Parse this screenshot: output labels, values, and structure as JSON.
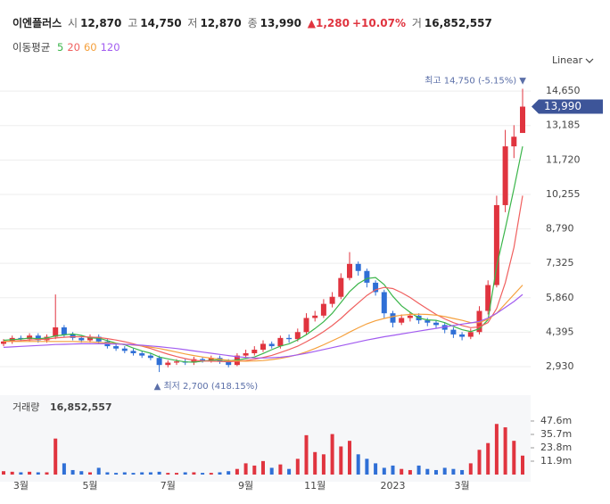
{
  "header": {
    "name": "이엔플러스",
    "open_label": "시",
    "open": "12,870",
    "high_label": "고",
    "high": "14,750",
    "low_label": "저",
    "low": "12,870",
    "close_label": "종",
    "close": "13,990",
    "change": "▲1,280",
    "change_pct": "+10.07%",
    "volume_label": "거",
    "volume": "16,852,557"
  },
  "chart_data": {
    "type": "candlestick",
    "scale_label": "Linear",
    "legend_title": "이동평균",
    "up_color": "#e0343f",
    "down_color": "#2f6fd6",
    "categories": [
      null,
      null,
      "3월",
      null,
      null,
      null,
      null,
      null,
      null,
      null,
      "5월",
      null,
      null,
      null,
      null,
      null,
      null,
      null,
      null,
      "7월",
      null,
      null,
      null,
      null,
      null,
      null,
      null,
      null,
      "9월",
      null,
      null,
      null,
      null,
      null,
      null,
      null,
      "11월",
      null,
      null,
      null,
      null,
      null,
      null,
      null,
      null,
      "2023",
      null,
      null,
      null,
      null,
      null,
      null,
      null,
      "3월",
      null,
      null,
      null,
      null,
      null,
      null,
      null
    ],
    "open": [
      3900,
      4000,
      4150,
      4100,
      4250,
      4050,
      4200,
      4600,
      4300,
      4150,
      4050,
      4200,
      4000,
      3800,
      3700,
      3600,
      3500,
      3400,
      3300,
      3000,
      3100,
      3150,
      3100,
      3250,
      3200,
      3300,
      3150,
      3000,
      3400,
      3500,
      3650,
      3900,
      3800,
      4150,
      4100,
      4400,
      5000,
      5100,
      5600,
      5900,
      6700,
      7300,
      7000,
      6500,
      6100,
      5200,
      4800,
      5000,
      5100,
      4900,
      4800,
      4700,
      4500,
      4300,
      4200,
      4400,
      5300,
      6400,
      9800,
      12300,
      12870
    ],
    "high": [
      4100,
      4250,
      4250,
      4350,
      4350,
      4300,
      6000,
      4700,
      4400,
      4250,
      4300,
      4300,
      4100,
      3900,
      3800,
      3700,
      3600,
      3500,
      3400,
      3200,
      3250,
      3250,
      3350,
      3350,
      3400,
      3400,
      3250,
      3500,
      3650,
      3800,
      4050,
      4000,
      4250,
      4300,
      4550,
      5200,
      5300,
      5800,
      6100,
      6900,
      7800,
      7400,
      7100,
      6600,
      6200,
      5300,
      5150,
      5250,
      5200,
      5000,
      4900,
      4800,
      4600,
      4400,
      4550,
      5500,
      6600,
      10200,
      13000,
      13200,
      14750
    ],
    "low": [
      3800,
      3900,
      4000,
      4000,
      3950,
      3950,
      4100,
      4200,
      4050,
      3950,
      3950,
      3900,
      3700,
      3600,
      3500,
      3400,
      3300,
      3200,
      2700,
      2900,
      3000,
      3000,
      3000,
      3100,
      3100,
      3050,
      2900,
      2950,
      3300,
      3400,
      3550,
      3700,
      3700,
      3950,
      4000,
      4300,
      4850,
      5000,
      5450,
      5800,
      6600,
      6800,
      6300,
      5950,
      5000,
      4600,
      4700,
      4850,
      4750,
      4650,
      4550,
      4350,
      4150,
      4050,
      4100,
      4300,
      5150,
      6300,
      9500,
      11800,
      12870
    ],
    "close": [
      4000,
      4150,
      4100,
      4250,
      4050,
      4200,
      4600,
      4300,
      4150,
      4050,
      4200,
      4000,
      3800,
      3700,
      3600,
      3500,
      3400,
      3300,
      3000,
      3100,
      3150,
      3100,
      3250,
      3200,
      3300,
      3150,
      3000,
      3400,
      3500,
      3650,
      3900,
      3800,
      4150,
      4100,
      4400,
      5000,
      5100,
      5600,
      5900,
      6700,
      7300,
      7000,
      6500,
      6100,
      5200,
      4800,
      5000,
      5100,
      4900,
      4800,
      4700,
      4500,
      4300,
      4200,
      4400,
      5300,
      6400,
      9800,
      12300,
      12710,
      13990
    ],
    "volume": [
      3000000,
      2500000,
      2000000,
      2500000,
      2000000,
      2000000,
      32000000,
      10000000,
      4000000,
      3000000,
      2000000,
      6000000,
      2000000,
      1500000,
      2000000,
      1500000,
      2000000,
      2000000,
      2500000,
      1500000,
      1500000,
      2000000,
      2000000,
      1500000,
      1500000,
      2000000,
      3000000,
      5000000,
      10000000,
      8000000,
      12000000,
      6000000,
      9000000,
      5000000,
      14000000,
      35000000,
      20000000,
      18000000,
      36000000,
      25000000,
      30000000,
      18000000,
      14000000,
      10000000,
      6000000,
      8000000,
      5000000,
      4000000,
      8000000,
      5000000,
      4000000,
      6000000,
      5000000,
      4000000,
      10000000,
      22000000,
      28000000,
      45000000,
      42000000,
      30000000,
      16852557
    ],
    "series": [
      {
        "name": "5",
        "color": "#3bb54a",
        "values": [
          4050,
          4080,
          4100,
          4150,
          4110,
          4150,
          4240,
          4280,
          4320,
          4260,
          4150,
          4140,
          4040,
          3930,
          3860,
          3720,
          3600,
          3500,
          3340,
          3260,
          3190,
          3130,
          3120,
          3160,
          3200,
          3220,
          3180,
          3210,
          3270,
          3340,
          3490,
          3650,
          3800,
          3900,
          4070,
          4290,
          4550,
          4840,
          5200,
          5660,
          6120,
          6460,
          6680,
          6720,
          6420,
          5920,
          5520,
          5240,
          5000,
          4920,
          4900,
          4800,
          4640,
          4500,
          4420,
          4540,
          4920,
          7200,
          8800,
          10500,
          12300
        ]
      },
      {
        "name": "20",
        "color": "#f0605f",
        "values": [
          4000,
          4020,
          4040,
          4060,
          4080,
          4100,
          4150,
          4180,
          4200,
          4200,
          4190,
          4170,
          4120,
          4060,
          3990,
          3900,
          3800,
          3700,
          3580,
          3460,
          3360,
          3270,
          3200,
          3170,
          3160,
          3150,
          3140,
          3160,
          3190,
          3240,
          3320,
          3410,
          3530,
          3660,
          3800,
          3990,
          4190,
          4420,
          4680,
          4980,
          5320,
          5640,
          5960,
          6200,
          6300,
          6250,
          6080,
          5870,
          5620,
          5380,
          5150,
          4960,
          4800,
          4680,
          4590,
          4620,
          4800,
          5400,
          6500,
          8000,
          10200
        ]
      },
      {
        "name": "60",
        "color": "#f5a03c",
        "values": [
          4000,
          4000,
          4000,
          4000,
          4000,
          4000,
          4000,
          4000,
          4000,
          3990,
          3980,
          3960,
          3940,
          3910,
          3880,
          3850,
          3810,
          3760,
          3700,
          3630,
          3550,
          3470,
          3400,
          3340,
          3290,
          3240,
          3200,
          3170,
          3160,
          3170,
          3190,
          3230,
          3280,
          3350,
          3440,
          3560,
          3700,
          3860,
          4030,
          4200,
          4400,
          4580,
          4750,
          4880,
          4980,
          5060,
          5120,
          5150,
          5160,
          5150,
          5120,
          5060,
          4980,
          4900,
          4800,
          4800,
          4950,
          5200,
          5600,
          6000,
          6400
        ]
      },
      {
        "name": "120",
        "color": "#a25cf0",
        "values": [
          3750,
          3770,
          3790,
          3810,
          3830,
          3850,
          3870,
          3880,
          3890,
          3900,
          3900,
          3900,
          3900,
          3890,
          3880,
          3860,
          3840,
          3810,
          3780,
          3740,
          3700,
          3650,
          3600,
          3550,
          3500,
          3450,
          3400,
          3350,
          3320,
          3300,
          3300,
          3310,
          3330,
          3370,
          3430,
          3500,
          3580,
          3660,
          3740,
          3820,
          3900,
          3980,
          4060,
          4130,
          4200,
          4260,
          4320,
          4380,
          4440,
          4500,
          4560,
          4620,
          4680,
          4740,
          4790,
          4850,
          5000,
          5200,
          5450,
          5700,
          6000
        ]
      }
    ],
    "ylim": [
      1830,
      15300
    ],
    "yticks": [
      {
        "value": 2930,
        "label": "2,930"
      },
      {
        "value": 4395,
        "label": "4,395"
      },
      {
        "value": 5860,
        "label": "5,860"
      },
      {
        "value": 7325,
        "label": "7,325"
      },
      {
        "value": 8790,
        "label": "8,790"
      },
      {
        "value": 10255,
        "label": "10,255"
      },
      {
        "value": 11720,
        "label": "11,720"
      },
      {
        "value": 13185,
        "label": "13,185"
      },
      {
        "value": 14650,
        "label": "14,650"
      }
    ],
    "grid": true,
    "volume_title": "거래량",
    "volume_value": "16,852,557",
    "volume_ylim": [
      0,
      69000000
    ],
    "volume_yticks": [
      {
        "value": 11900000,
        "label": "11.9m"
      },
      {
        "value": 23800000,
        "label": "23.8m"
      },
      {
        "value": 35700000,
        "label": "35.7m"
      },
      {
        "value": 47600000,
        "label": "47.6m"
      }
    ],
    "max_label": "최고 14,750 (-5.15%) ▼",
    "min_label": "▲ 최저 2,700 (418.15%)",
    "last_price": {
      "value": 13990,
      "label": "13,990"
    }
  }
}
